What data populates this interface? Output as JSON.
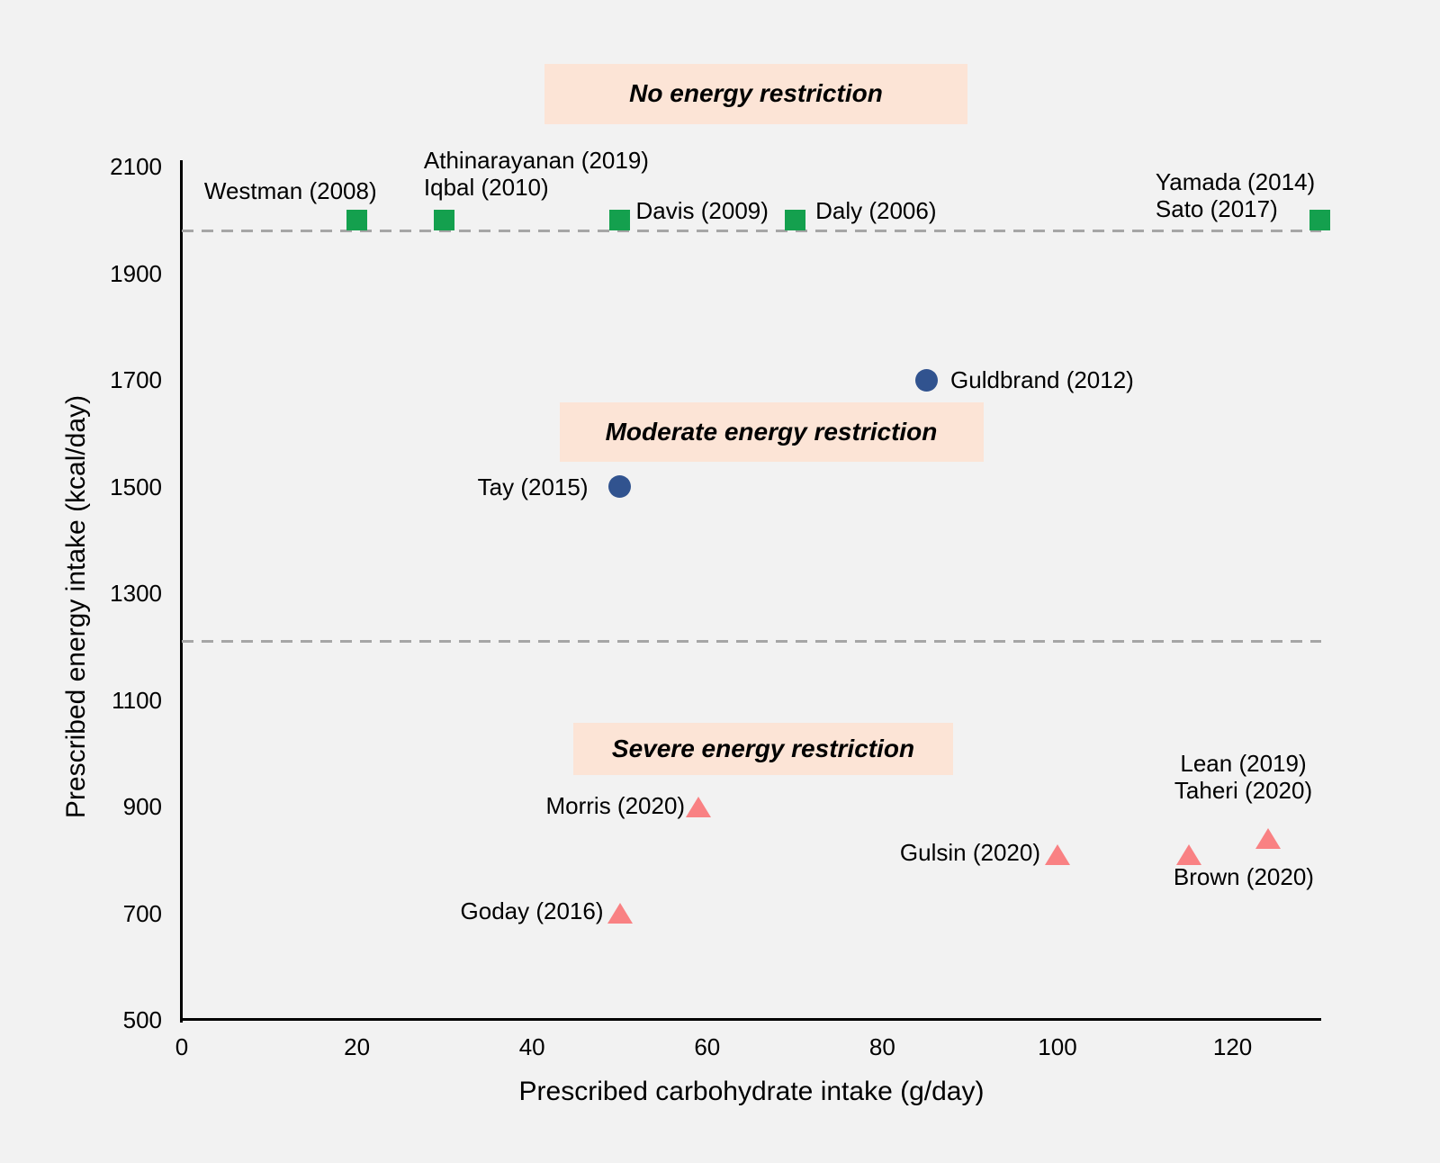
{
  "chart_data": {
    "type": "scatter",
    "title": "",
    "xlabel": "Prescribed carbohydrate intake (g/day)",
    "ylabel": "Prescribed energy intake (kcal/day)",
    "xlim": [
      0,
      130
    ],
    "ylim": [
      500,
      2100
    ],
    "x_ticks": [
      "0",
      "20",
      "40",
      "60",
      "80",
      "100",
      "120"
    ],
    "y_ticks": [
      "500",
      "700",
      "900",
      "1100",
      "1300",
      "1500",
      "1700",
      "1900",
      "2100"
    ],
    "grid": false,
    "legend": "none",
    "background_color": "#f2f2f2",
    "reference_lines": [
      {
        "y": 1980,
        "style": "dashed",
        "color": "#a6a6a6"
      },
      {
        "y": 1210,
        "style": "dashed",
        "color": "#a6a6a6"
      }
    ],
    "annotations": [
      {
        "id": "no",
        "text": "No energy restriction",
        "bg": "#fce4d6"
      },
      {
        "id": "moderate",
        "text": "Moderate energy restriction",
        "bg": "#fce4d6"
      },
      {
        "id": "severe",
        "text": "Severe energy restriction",
        "bg": "#fce4d6"
      }
    ],
    "series": [
      {
        "name": "No energy restriction",
        "marker": "square",
        "color": "#14a04e",
        "points": [
          {
            "id": "westman",
            "labels": [
              "Westman (2008)"
            ],
            "x": 20,
            "y": 2000
          },
          {
            "id": "athinarayanan_iqbal",
            "labels": [
              "Athinarayanan (2019)",
              "Iqbal (2010)"
            ],
            "x": 30,
            "y": 2000
          },
          {
            "id": "davis",
            "labels": [
              "Davis (2009)"
            ],
            "x": 50,
            "y": 2000
          },
          {
            "id": "daly",
            "labels": [
              "Daly (2006)"
            ],
            "x": 70,
            "y": 2000
          },
          {
            "id": "yamada_sato",
            "labels": [
              "Yamada (2014)",
              "Sato (2017)"
            ],
            "x": 130,
            "y": 2000
          }
        ]
      },
      {
        "name": "Moderate energy restriction",
        "marker": "circle",
        "color": "#31538f",
        "points": [
          {
            "id": "guldbrand",
            "labels": [
              "Guldbrand (2012)"
            ],
            "x": 85,
            "y": 1700
          },
          {
            "id": "tay",
            "labels": [
              "Tay (2015)"
            ],
            "x": 50,
            "y": 1500
          }
        ]
      },
      {
        "name": "Severe energy restriction",
        "marker": "triangle",
        "color": "#f98183",
        "points": [
          {
            "id": "morris",
            "labels": [
              "Morris (2020)"
            ],
            "x": 59,
            "y": 900
          },
          {
            "id": "goday",
            "labels": [
              "Goday (2016)"
            ],
            "x": 50,
            "y": 700
          },
          {
            "id": "gulsin",
            "labels": [
              "Gulsin (2020)"
            ],
            "x": 100,
            "y": 810
          },
          {
            "id": "brown",
            "labels": [
              "Brown (2020)"
            ],
            "x": 115,
            "y": 810
          },
          {
            "id": "lean_taheri",
            "labels": [
              "Lean (2019)",
              "Taheri (2020)"
            ],
            "x": 124,
            "y": 840
          }
        ]
      }
    ]
  }
}
